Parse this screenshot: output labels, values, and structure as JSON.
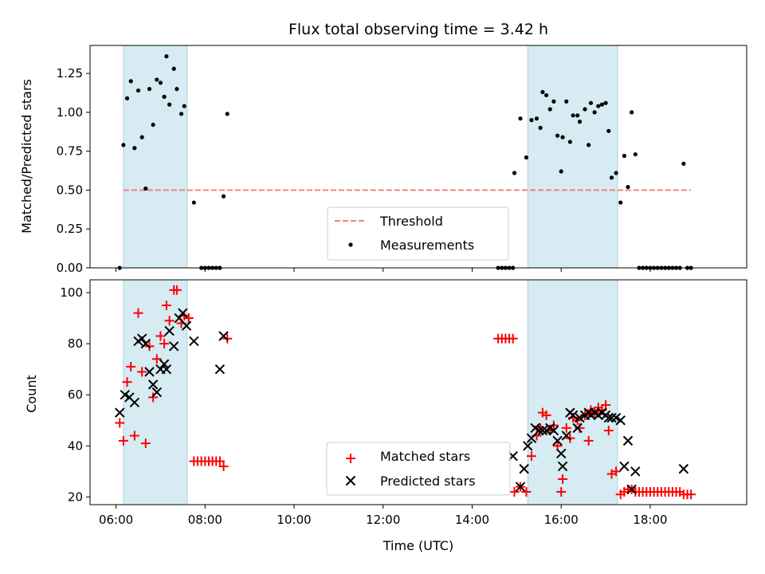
{
  "chart_data": [
    {
      "type": "scatter",
      "title": "Flux total observing time = 3.42 h",
      "xlabel": "",
      "ylabel": "Matched/Predicted stars",
      "xlim": [
        "05:25",
        "20:10"
      ],
      "ylim": [
        0,
        1.43
      ],
      "x_ticks": [
        "06:00",
        "08:00",
        "10:00",
        "12:00",
        "14:00",
        "16:00",
        "18:00"
      ],
      "y_ticks": [
        0.0,
        0.25,
        0.5,
        0.75,
        1.0,
        1.25
      ],
      "y_tick_labels": [
        "0.00",
        "0.25",
        "0.50",
        "0.75",
        "1.00",
        "1.25"
      ],
      "legend": {
        "placement": "bottom-center",
        "entries": [
          "Threshold",
          "Measurements"
        ]
      },
      "shaded_intervals": [
        [
          "06:10",
          "07:36"
        ],
        [
          "15:15",
          "17:16"
        ]
      ],
      "threshold": {
        "name": "Threshold",
        "value": 0.5,
        "x_range": [
          "06:10",
          "18:55"
        ],
        "color": "#f08080"
      },
      "series": [
        {
          "name": "Measurements",
          "color": "#000000",
          "points": [
            [
              "06:05",
              0.0
            ],
            [
              "06:10",
              0.79
            ],
            [
              "06:15",
              1.09
            ],
            [
              "06:20",
              1.2
            ],
            [
              "06:25",
              0.77
            ],
            [
              "06:30",
              1.14
            ],
            [
              "06:35",
              0.84
            ],
            [
              "06:40",
              0.51
            ],
            [
              "06:45",
              1.15
            ],
            [
              "06:50",
              0.92
            ],
            [
              "06:55",
              1.21
            ],
            [
              "07:00",
              1.19
            ],
            [
              "07:05",
              1.1
            ],
            [
              "07:08",
              1.36
            ],
            [
              "07:12",
              1.05
            ],
            [
              "07:18",
              1.28
            ],
            [
              "07:22",
              1.15
            ],
            [
              "07:28",
              0.99
            ],
            [
              "07:32",
              1.04
            ],
            [
              "07:45",
              0.42
            ],
            [
              "07:55",
              0.0
            ],
            [
              "08:00",
              0.0
            ],
            [
              "08:05",
              0.0
            ],
            [
              "08:10",
              0.0
            ],
            [
              "08:15",
              0.0
            ],
            [
              "08:20",
              0.0
            ],
            [
              "08:25",
              0.46
            ],
            [
              "08:30",
              0.99
            ],
            [
              "14:35",
              0.0
            ],
            [
              "14:40",
              0.0
            ],
            [
              "14:45",
              0.0
            ],
            [
              "14:50",
              0.0
            ],
            [
              "14:55",
              0.0
            ],
            [
              "14:57",
              0.61
            ],
            [
              "15:05",
              0.96
            ],
            [
              "15:13",
              0.71
            ],
            [
              "15:20",
              0.95
            ],
            [
              "15:27",
              0.96
            ],
            [
              "15:32",
              0.9
            ],
            [
              "15:35",
              1.13
            ],
            [
              "15:40",
              1.11
            ],
            [
              "15:45",
              1.02
            ],
            [
              "15:50",
              1.07
            ],
            [
              "15:55",
              0.85
            ],
            [
              "16:00",
              0.62
            ],
            [
              "16:02",
              0.84
            ],
            [
              "16:07",
              1.07
            ],
            [
              "16:12",
              0.81
            ],
            [
              "16:16",
              0.98
            ],
            [
              "16:22",
              0.98
            ],
            [
              "16:25",
              0.94
            ],
            [
              "16:32",
              1.02
            ],
            [
              "16:37",
              0.79
            ],
            [
              "16:40",
              1.06
            ],
            [
              "16:45",
              1.0
            ],
            [
              "16:50",
              1.04
            ],
            [
              "16:55",
              1.05
            ],
            [
              "17:00",
              1.06
            ],
            [
              "17:04",
              0.88
            ],
            [
              "17:08",
              0.58
            ],
            [
              "17:14",
              0.61
            ],
            [
              "17:20",
              0.42
            ],
            [
              "17:25",
              0.72
            ],
            [
              "17:30",
              0.52
            ],
            [
              "17:35",
              1.0
            ],
            [
              "17:40",
              0.73
            ],
            [
              "17:45",
              0.0
            ],
            [
              "17:50",
              0.0
            ],
            [
              "17:55",
              0.0
            ],
            [
              "18:00",
              0.0
            ],
            [
              "18:05",
              0.0
            ],
            [
              "18:10",
              0.0
            ],
            [
              "18:15",
              0.0
            ],
            [
              "18:20",
              0.0
            ],
            [
              "18:25",
              0.0
            ],
            [
              "18:30",
              0.0
            ],
            [
              "18:35",
              0.0
            ],
            [
              "18:40",
              0.0
            ],
            [
              "18:45",
              0.67
            ],
            [
              "18:50",
              0.0
            ],
            [
              "18:55",
              0.0
            ]
          ]
        }
      ]
    },
    {
      "type": "scatter",
      "title": "",
      "xlabel": "Time (UTC)",
      "ylabel": "Count",
      "xlim": [
        "05:25",
        "20:10"
      ],
      "ylim": [
        17,
        105
      ],
      "x_ticks": [
        "06:00",
        "08:00",
        "10:00",
        "12:00",
        "14:00",
        "16:00",
        "18:00"
      ],
      "x_tick_labels": [
        "06:00",
        "08:00",
        "10:00",
        "12:00",
        "14:00",
        "16:00",
        "18:00"
      ],
      "y_ticks": [
        20,
        40,
        60,
        80,
        100
      ],
      "y_tick_labels": [
        "20",
        "40",
        "60",
        "80",
        "100"
      ],
      "legend": {
        "placement": "bottom-center",
        "entries": [
          "Matched stars",
          "Predicted stars"
        ]
      },
      "shaded_intervals": [
        [
          "06:10",
          "07:36"
        ],
        [
          "15:15",
          "17:16"
        ]
      ],
      "series": [
        {
          "name": "Matched stars",
          "color": "#ff0000",
          "marker": "plus",
          "points": [
            [
              "06:05",
              49
            ],
            [
              "06:10",
              42
            ],
            [
              "06:15",
              65
            ],
            [
              "06:20",
              71
            ],
            [
              "06:25",
              44
            ],
            [
              "06:30",
              92
            ],
            [
              "06:35",
              69
            ],
            [
              "06:40",
              41
            ],
            [
              "06:45",
              79
            ],
            [
              "06:50",
              59
            ],
            [
              "06:55",
              74
            ],
            [
              "07:00",
              83
            ],
            [
              "07:05",
              80
            ],
            [
              "07:08",
              95
            ],
            [
              "07:12",
              89
            ],
            [
              "07:18",
              101
            ],
            [
              "07:22",
              101
            ],
            [
              "07:28",
              88
            ],
            [
              "07:32",
              91
            ],
            [
              "07:38",
              90
            ],
            [
              "07:45",
              34
            ],
            [
              "07:50",
              34
            ],
            [
              "07:55",
              34
            ],
            [
              "08:00",
              34
            ],
            [
              "08:05",
              34
            ],
            [
              "08:10",
              34
            ],
            [
              "08:15",
              34
            ],
            [
              "08:20",
              34
            ],
            [
              "08:25",
              32
            ],
            [
              "08:30",
              82
            ],
            [
              "14:35",
              82
            ],
            [
              "14:40",
              82
            ],
            [
              "14:45",
              82
            ],
            [
              "14:50",
              82
            ],
            [
              "14:55",
              82
            ],
            [
              "14:57",
              22
            ],
            [
              "15:05",
              24
            ],
            [
              "15:13",
              22
            ],
            [
              "15:20",
              36
            ],
            [
              "15:27",
              44
            ],
            [
              "15:32",
              47
            ],
            [
              "15:35",
              53
            ],
            [
              "15:40",
              52
            ],
            [
              "15:45",
              46
            ],
            [
              "15:50",
              48
            ],
            [
              "15:55",
              40
            ],
            [
              "16:00",
              22
            ],
            [
              "16:02",
              27
            ],
            [
              "16:07",
              47
            ],
            [
              "16:12",
              43
            ],
            [
              "16:16",
              51
            ],
            [
              "16:22",
              50
            ],
            [
              "16:25",
              47
            ],
            [
              "16:32",
              52
            ],
            [
              "16:37",
              42
            ],
            [
              "16:40",
              54
            ],
            [
              "16:45",
              53
            ],
            [
              "16:50",
              55
            ],
            [
              "16:55",
              54
            ],
            [
              "17:00",
              56
            ],
            [
              "17:04",
              46
            ],
            [
              "17:08",
              29
            ],
            [
              "17:14",
              30
            ],
            [
              "17:20",
              21
            ],
            [
              "17:25",
              22
            ],
            [
              "17:30",
              23
            ],
            [
              "17:35",
              23
            ],
            [
              "17:40",
              22
            ],
            [
              "17:45",
              22
            ],
            [
              "17:50",
              22
            ],
            [
              "17:55",
              22
            ],
            [
              "18:00",
              22
            ],
            [
              "18:05",
              22
            ],
            [
              "18:10",
              22
            ],
            [
              "18:15",
              22
            ],
            [
              "18:20",
              22
            ],
            [
              "18:25",
              22
            ],
            [
              "18:30",
              22
            ],
            [
              "18:35",
              22
            ],
            [
              "18:40",
              22
            ],
            [
              "18:45",
              21
            ],
            [
              "18:50",
              21
            ],
            [
              "18:55",
              21
            ]
          ]
        },
        {
          "name": "Predicted stars",
          "color": "#000000",
          "marker": "x",
          "points": [
            [
              "06:05",
              53
            ],
            [
              "06:12",
              60
            ],
            [
              "06:18",
              59
            ],
            [
              "06:25",
              57
            ],
            [
              "06:30",
              81
            ],
            [
              "06:35",
              82
            ],
            [
              "06:40",
              80
            ],
            [
              "06:45",
              69
            ],
            [
              "06:50",
              64
            ],
            [
              "06:55",
              61
            ],
            [
              "07:00",
              70
            ],
            [
              "07:05",
              72
            ],
            [
              "07:08",
              70
            ],
            [
              "07:12",
              85
            ],
            [
              "07:18",
              79
            ],
            [
              "07:25",
              90
            ],
            [
              "07:30",
              92
            ],
            [
              "07:35",
              87
            ],
            [
              "07:45",
              81
            ],
            [
              "08:20",
              70
            ],
            [
              "08:25",
              83
            ],
            [
              "14:55",
              36
            ],
            [
              "15:05",
              24
            ],
            [
              "15:10",
              31
            ],
            [
              "15:15",
              40
            ],
            [
              "15:20",
              43
            ],
            [
              "15:25",
              47
            ],
            [
              "15:30",
              46
            ],
            [
              "15:35",
              46
            ],
            [
              "15:40",
              46
            ],
            [
              "15:45",
              47
            ],
            [
              "15:50",
              46
            ],
            [
              "15:55",
              42
            ],
            [
              "16:00",
              37
            ],
            [
              "16:02",
              32
            ],
            [
              "16:07",
              44
            ],
            [
              "16:12",
              53
            ],
            [
              "16:16",
              52
            ],
            [
              "16:22",
              47
            ],
            [
              "16:25",
              51
            ],
            [
              "16:32",
              52
            ],
            [
              "16:37",
              53
            ],
            [
              "16:40",
              52
            ],
            [
              "16:45",
              53
            ],
            [
              "16:50",
              52
            ],
            [
              "16:55",
              53
            ],
            [
              "17:00",
              52
            ],
            [
              "17:04",
              51
            ],
            [
              "17:08",
              51
            ],
            [
              "17:14",
              51
            ],
            [
              "17:20",
              50
            ],
            [
              "17:25",
              32
            ],
            [
              "17:30",
              42
            ],
            [
              "17:35",
              23
            ],
            [
              "17:40",
              30
            ],
            [
              "18:45",
              31
            ]
          ]
        }
      ]
    }
  ]
}
